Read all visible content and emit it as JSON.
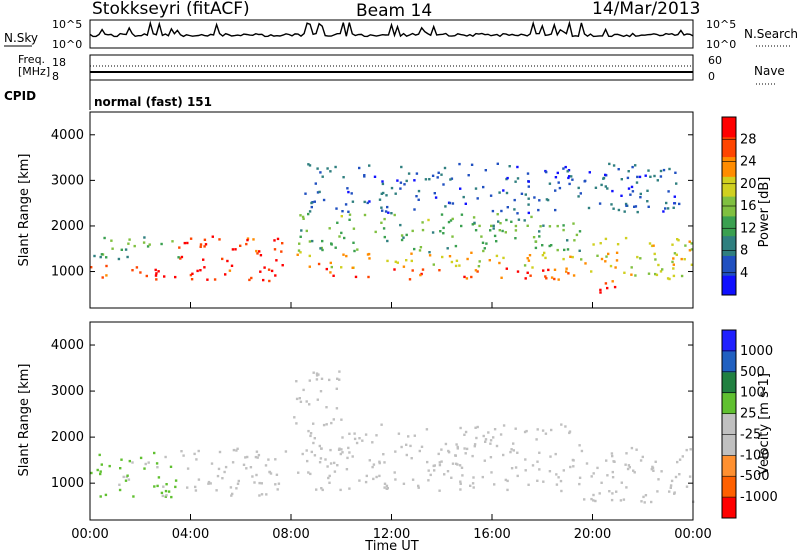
{
  "header": {
    "station": "Stokkseyri (fitACF)",
    "beam": "Beam 14",
    "date": "14/Mar/2013"
  },
  "noise_panel": {
    "left_label": "N.Sky",
    "right_label": "N.Search",
    "left_ticks": [
      "10^5",
      "10^0"
    ],
    "right_ticks": [
      "10^5",
      "10^0"
    ]
  },
  "freq_panel": {
    "left_label_top": "Freq.",
    "left_label_unit": "[MHz]",
    "right_label": "Nave",
    "left_ticks": [
      "18",
      "8"
    ],
    "right_ticks": [
      "60",
      "0"
    ]
  },
  "cpid": {
    "label": "CPID",
    "value": "normal (fast) 151"
  },
  "colors": {
    "power": [
      "#1010ff",
      "#2050c0",
      "#2f7f7f",
      "#3aa050",
      "#80c040",
      "#d0d020",
      "#ff8c00",
      "#ff4500",
      "#ff0000"
    ],
    "velocity": [
      "#ff0000",
      "#ff6000",
      "#ff9030",
      "#c0c0c0",
      "#c0c0c0",
      "#60c030",
      "#208040",
      "#2060c0",
      "#2020ff"
    ]
  },
  "chart_data": [
    {
      "type": "heatmap",
      "name": "power",
      "ylabel": "Slant Range [km]",
      "ylim": [
        200,
        4500
      ],
      "yticks": [
        "1000",
        "2000",
        "3000",
        "4000"
      ],
      "xlim": [
        "00:00",
        "24:00"
      ],
      "xticks": [
        "00:00",
        "04:00",
        "08:00",
        "12:00",
        "16:00",
        "20:00",
        "00:00"
      ],
      "colorbar": {
        "label": "Power [dB]",
        "ticks": [
          "28",
          "24",
          "20",
          "16",
          "12",
          "8",
          "4"
        ],
        "range": [
          0,
          30
        ]
      },
      "bands": [
        {
          "t0": 0.0,
          "t1": 7.8,
          "r0": 800,
          "r1": 1150,
          "v": 26
        },
        {
          "t0": 3.5,
          "t1": 7.8,
          "r0": 1150,
          "r1": 1800,
          "v": 27
        },
        {
          "t0": 0.0,
          "t1": 3.5,
          "r0": 1300,
          "r1": 1800,
          "v": 12
        },
        {
          "t0": 8.2,
          "t1": 19.5,
          "r0": 850,
          "r1": 1100,
          "v": 25
        },
        {
          "t0": 8.2,
          "t1": 19.5,
          "r0": 1100,
          "r1": 1450,
          "v": 20
        },
        {
          "t0": 8.2,
          "t1": 19.5,
          "r0": 1450,
          "r1": 2300,
          "v": 13
        },
        {
          "t0": 8.5,
          "t1": 23.5,
          "r0": 2300,
          "r1": 3400,
          "v": 6
        },
        {
          "t0": 19.5,
          "t1": 24.0,
          "r0": 800,
          "r1": 1800,
          "v": 18
        },
        {
          "t0": 19.5,
          "t1": 21.0,
          "r0": 550,
          "r1": 800,
          "v": 27
        }
      ]
    },
    {
      "type": "heatmap",
      "name": "velocity",
      "ylabel": "Slant Range [km]",
      "ylim": [
        200,
        4500
      ],
      "yticks": [
        "1000",
        "2000",
        "3000",
        "4000"
      ],
      "xlabel": "Time UT",
      "xlim": [
        "00:00",
        "24:00"
      ],
      "xticks": [
        "00:00",
        "04:00",
        "08:00",
        "12:00",
        "16:00",
        "20:00",
        "00:00"
      ],
      "colorbar": {
        "label": "Velocity [m s-1]",
        "ticks": [
          "1000",
          "500",
          "100",
          "25",
          "-25",
          "-100",
          "-500",
          "-1000"
        ],
        "range": [
          -1000,
          1000
        ]
      },
      "bands": [
        {
          "t0": 0.0,
          "t1": 3.5,
          "r0": 700,
          "r1": 1700,
          "v": 150
        },
        {
          "t0": 3.5,
          "t1": 7.8,
          "r0": 700,
          "r1": 1800,
          "v": -200
        },
        {
          "t0": 8.2,
          "t1": 19.5,
          "r0": 850,
          "r1": 2300,
          "v": 0
        },
        {
          "t0": 8.0,
          "t1": 10.0,
          "r0": 2300,
          "r1": 3500,
          "v": -150
        },
        {
          "t0": 19.5,
          "t1": 24.0,
          "r0": 600,
          "r1": 1800,
          "v": -120
        }
      ]
    }
  ],
  "footer": {
    "xlabel": "Time UT"
  }
}
